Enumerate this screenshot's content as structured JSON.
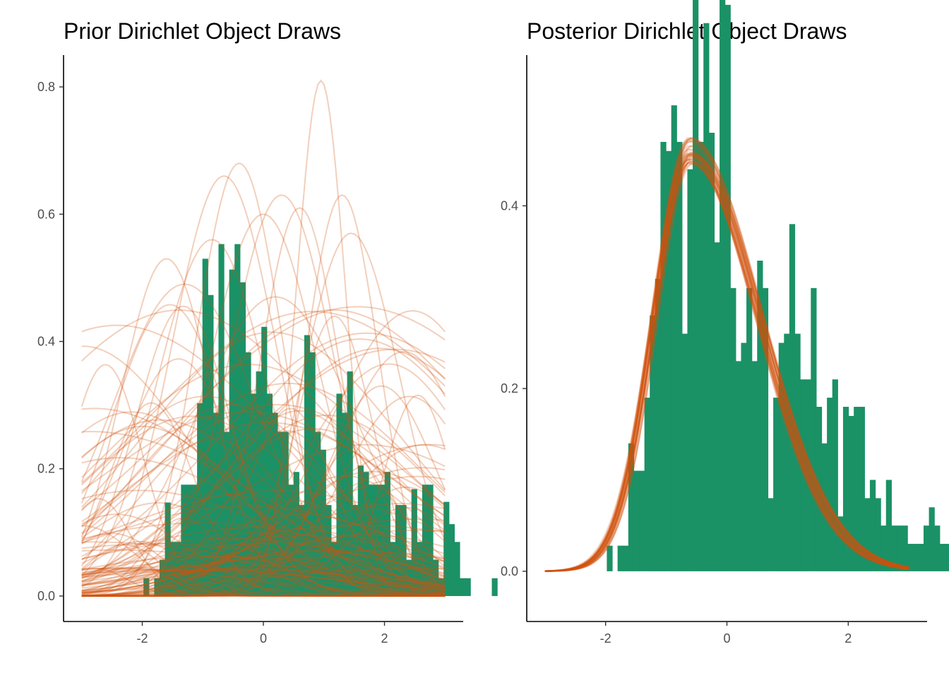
{
  "colors": {
    "histogram": "#1b9166",
    "density": "#d2520f"
  },
  "chart_data": [
    {
      "type": "histogram",
      "title": "Prior Dirichlet Object Draws",
      "xlabel": "",
      "ylabel": "",
      "xlim": [
        -3.3,
        3.3
      ],
      "ylim": [
        -0.04,
        0.85
      ],
      "x_ticks": [
        -2,
        0,
        2
      ],
      "y_ticks": [
        0.0,
        0.2,
        0.4,
        0.6,
        0.8
      ],
      "x_tick_labels": [
        "-2",
        "0",
        "2"
      ],
      "y_tick_labels": [
        "0.0",
        "0.2",
        "0.4",
        "0.6",
        "0.8"
      ],
      "grid": false,
      "bins": {
        "start": -1.98,
        "width": 0.0885,
        "values": [
          0.028,
          0,
          0.028,
          0.057,
          0.147,
          0.085,
          0.085,
          0.175,
          0.175,
          0.175,
          0.303,
          0.53,
          0.473,
          0.288,
          0.553,
          0.258,
          0.513,
          0.553,
          0.493,
          0.383,
          0.318,
          0.353,
          0.423,
          0.318,
          0.288,
          0.258,
          0.258,
          0.175,
          0.195,
          0.143,
          0.41,
          0.383,
          0.258,
          0.23,
          0.143,
          0.085,
          0.318,
          0.288,
          0.353,
          0.143,
          0.205,
          0.195,
          0.175,
          0.175,
          0.175,
          0.195,
          0.085,
          0.143,
          0.143,
          0.057,
          0.168,
          0.085,
          0.175,
          0.175,
          0.057,
          0.028,
          0.148,
          0.113,
          0.085,
          0.028,
          0.028,
          0,
          0,
          0,
          0,
          0.028
        ]
      },
      "density_curves": {
        "x_range": [
          -3,
          3
        ],
        "count": 120,
        "components": [
          {
            "mu": -1.6,
            "sd": 0.75,
            "peak": 0.53
          },
          {
            "mu": -1.3,
            "sd": 1.2,
            "peak": 0.49
          },
          {
            "mu": -0.65,
            "sd": 0.85,
            "peak": 0.66
          },
          {
            "mu": -0.4,
            "sd": 0.7,
            "peak": 0.68
          },
          {
            "mu": -0.85,
            "sd": 0.9,
            "peak": 0.56
          },
          {
            "mu": 0.0,
            "sd": 0.9,
            "peak": 0.6
          },
          {
            "mu": 0.3,
            "sd": 0.85,
            "peak": 0.63
          },
          {
            "mu": 0.6,
            "sd": 0.65,
            "peak": 0.61
          },
          {
            "mu": 0.95,
            "sd": 0.4,
            "peak": 0.81
          },
          {
            "mu": 1.3,
            "sd": 0.6,
            "peak": 0.63
          },
          {
            "mu": 1.45,
            "sd": 0.8,
            "peak": 0.57
          },
          {
            "mu": 1.95,
            "sd": 0.9,
            "peak": 0.33
          },
          {
            "mu": 0.2,
            "sd": 1.3,
            "peak": 0.47
          }
        ]
      }
    },
    {
      "type": "histogram",
      "title": "Posterior Dirichlet Object Draws",
      "xlabel": "",
      "ylabel": "",
      "xlim": [
        -3.3,
        3.3
      ],
      "ylim": [
        -0.055,
        0.565
      ],
      "x_ticks": [
        -2,
        0,
        2
      ],
      "y_ticks": [
        0.0,
        0.2,
        0.4
      ],
      "x_tick_labels": [
        "-2",
        "0",
        "2"
      ],
      "y_tick_labels": [
        "0.0",
        "0.2",
        "0.4"
      ],
      "grid": false,
      "bins": {
        "start": -1.98,
        "width": 0.0885,
        "values": [
          0.028,
          0,
          0.028,
          0.028,
          0.14,
          0.11,
          0.11,
          0.19,
          0.28,
          0.32,
          0.47,
          0.46,
          0.51,
          0.47,
          0.26,
          0.44,
          0.65,
          0.47,
          0.6,
          0.48,
          0.36,
          0.63,
          0.62,
          0.31,
          0.23,
          0.25,
          0.31,
          0.23,
          0.34,
          0.31,
          0.08,
          0.19,
          0.25,
          0.26,
          0.38,
          0.26,
          0.21,
          0.21,
          0.31,
          0.18,
          0.14,
          0.19,
          0.21,
          0.06,
          0.18,
          0.17,
          0.18,
          0.18,
          0.08,
          0.1,
          0.08,
          0.05,
          0.1,
          0.05,
          0.05,
          0.05,
          0.03,
          0.03,
          0.03,
          0.05,
          0.07,
          0.05,
          0.03,
          0.03,
          0.03,
          0.03,
          0.03,
          0.03,
          0,
          0,
          0.03
        ]
      },
      "density_curves": {
        "x_range": [
          -3,
          3
        ],
        "count": 40,
        "mode": -0.6,
        "peak": 0.46,
        "sd_left": 0.6,
        "sd_right": 1.15
      }
    }
  ]
}
